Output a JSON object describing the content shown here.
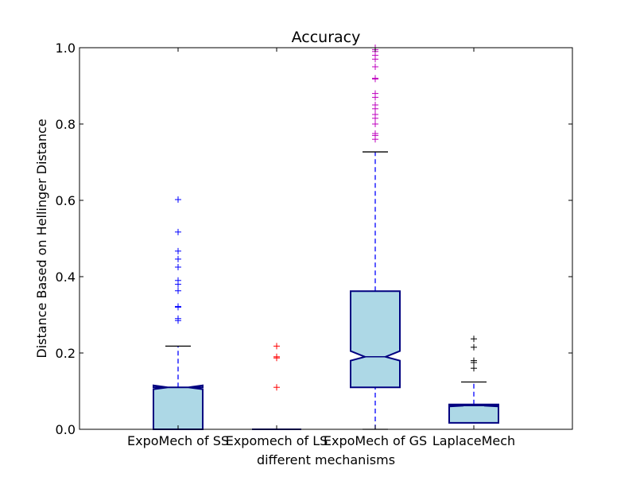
{
  "chart_data": {
    "type": "boxplot",
    "title": "Accuracy",
    "xlabel": "different mechanisms",
    "ylabel": "Distance Based on Hellinger Distance",
    "ylim": [
      0.0,
      1.0
    ],
    "yticks": [
      "0.0",
      "0.2",
      "0.4",
      "0.6",
      "0.8",
      "1.0"
    ],
    "categories": [
      "ExpoMech of SS",
      "Expomech of LS",
      "ExpoMech of GS",
      "LaplaceMech"
    ],
    "box_fill": "#add8e6",
    "box_edge": "#000080",
    "whisker_color": "#0000ff",
    "series": [
      {
        "category": "ExpoMech of SS",
        "q1": 0.0,
        "median": 0.11,
        "q3": 0.11,
        "notch_low": 0.105,
        "notch_high": 0.115,
        "whisker_low": 0.0,
        "whisker_high": 0.218,
        "flier_color": "#0000ff",
        "outliers": [
          0.602,
          0.517,
          0.467,
          0.446,
          0.425,
          0.39,
          0.38,
          0.363,
          0.322,
          0.32,
          0.29,
          0.285
        ]
      },
      {
        "category": "Expomech of LS",
        "q1": 0.0,
        "median": 0.0,
        "q3": 0.0,
        "notch_low": 0.0,
        "notch_high": 0.0,
        "whisker_low": 0.0,
        "whisker_high": 0.0,
        "flier_color": "#ff0000",
        "outliers": [
          0.218,
          0.19,
          0.187,
          0.11
        ]
      },
      {
        "category": "ExpoMech of GS",
        "q1": 0.11,
        "median": 0.19,
        "q3": 0.362,
        "notch_low": 0.18,
        "notch_high": 0.205,
        "whisker_low": 0.0,
        "whisker_high": 0.727,
        "flier_color": "#bf00bf",
        "outliers": [
          1.0,
          0.995,
          0.99,
          0.98,
          0.97,
          0.95,
          0.92,
          0.918,
          0.88,
          0.87,
          0.85,
          0.84,
          0.825,
          0.815,
          0.8,
          0.775,
          0.77,
          0.76
        ]
      },
      {
        "category": "LaplaceMech",
        "q1": 0.017,
        "median": 0.062,
        "q3": 0.065,
        "notch_low": 0.06,
        "notch_high": 0.064,
        "whisker_low": 0.017,
        "whisker_high": 0.124,
        "flier_color": "#000000",
        "outliers": [
          0.237,
          0.215,
          0.18,
          0.175,
          0.16
        ]
      }
    ]
  }
}
